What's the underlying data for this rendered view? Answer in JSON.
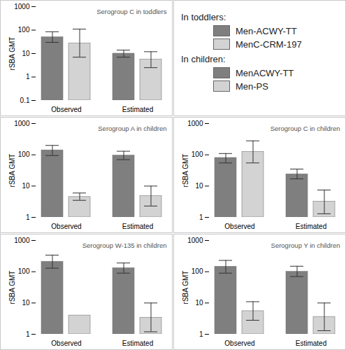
{
  "chart_data": [
    {
      "type": "bar",
      "title": "Serogroup C in toddlers",
      "categories": [
        "Observed",
        "Estimated"
      ],
      "series": [
        {
          "name": "Men-ACWY-TT",
          "color": "#7f7f7f",
          "values": [
            50,
            10
          ],
          "error_low": [
            30,
            7
          ],
          "error_high": [
            85,
            14
          ]
        },
        {
          "name": "MenC-CRM-197",
          "color": "#d3d3d3",
          "values": [
            27,
            5.5
          ],
          "error_low": [
            7,
            2.5
          ],
          "error_high": [
            110,
            12
          ]
        }
      ],
      "log": "y",
      "ylim": [
        0.1,
        1000
      ],
      "yticks": [
        0.1,
        1,
        10,
        100,
        1000
      ],
      "y_label": "rSBA GMT"
    },
    {
      "type": "bar",
      "title": "Serogroup A in children",
      "categories": [
        "Observed",
        "Estimated"
      ],
      "series": [
        {
          "name": "MenACWY-TT",
          "color": "#7f7f7f",
          "values": [
            140,
            95
          ],
          "error_low": [
            95,
            70
          ],
          "error_high": [
            200,
            130
          ]
        },
        {
          "name": "Men-PS",
          "color": "#d3d3d3",
          "values": [
            4.5,
            4.8
          ],
          "error_low": [
            3.5,
            2.3
          ],
          "error_high": [
            6,
            10
          ]
        }
      ],
      "log": "y",
      "ylim": [
        1,
        1000
      ],
      "yticks": [
        1,
        10,
        100,
        1000
      ],
      "y_label": "rSBA GMT"
    },
    {
      "type": "bar",
      "title": "Serogroup C in children",
      "categories": [
        "Observed",
        "Estimated"
      ],
      "series": [
        {
          "name": "MenACWY-TT",
          "color": "#7f7f7f",
          "values": [
            80,
            24
          ],
          "error_low": [
            55,
            17
          ],
          "error_high": [
            110,
            35
          ]
        },
        {
          "name": "Men-PS",
          "color": "#d3d3d3",
          "values": [
            125,
            3.2
          ],
          "error_low": [
            55,
            1.3
          ],
          "error_high": [
            280,
            7.5
          ]
        }
      ],
      "log": "y",
      "ylim": [
        1,
        1000
      ],
      "yticks": [
        1,
        10,
        100,
        1000
      ],
      "y_label": "rSBA GMT"
    },
    {
      "type": "bar",
      "title": "Serogroup W-135 in children",
      "categories": [
        "Observed",
        "Estimated"
      ],
      "series": [
        {
          "name": "MenACWY-TT",
          "color": "#7f7f7f",
          "values": [
            210,
            130
          ],
          "error_low": [
            130,
            90
          ],
          "error_high": [
            340,
            190
          ]
        },
        {
          "name": "Men-PS",
          "color": "#d3d3d3",
          "values": [
            4,
            3.4
          ],
          "error_low": [
            null,
            1.2
          ],
          "error_high": [
            null,
            10
          ]
        }
      ],
      "log": "y",
      "ylim": [
        1,
        1000
      ],
      "yticks": [
        1,
        10,
        100,
        1000
      ],
      "y_label": "rSBA GMT"
    },
    {
      "type": "bar",
      "title": "Serogroup Y in children",
      "categories": [
        "Observed",
        "Estimated"
      ],
      "series": [
        {
          "name": "MenACWY-TT",
          "color": "#7f7f7f",
          "values": [
            145,
            100
          ],
          "error_low": [
            90,
            70
          ],
          "error_high": [
            230,
            150
          ]
        },
        {
          "name": "Men-PS",
          "color": "#d3d3d3",
          "values": [
            5.5,
            3.6
          ],
          "error_low": [
            2.8,
            1.3
          ],
          "error_high": [
            11,
            10
          ]
        }
      ],
      "log": "y",
      "ylim": [
        1,
        1000
      ],
      "yticks": [
        1,
        10,
        100,
        1000
      ],
      "y_label": "rSBA GMT"
    }
  ],
  "legend_headings": [
    "In toddlers:",
    "In children:"
  ]
}
